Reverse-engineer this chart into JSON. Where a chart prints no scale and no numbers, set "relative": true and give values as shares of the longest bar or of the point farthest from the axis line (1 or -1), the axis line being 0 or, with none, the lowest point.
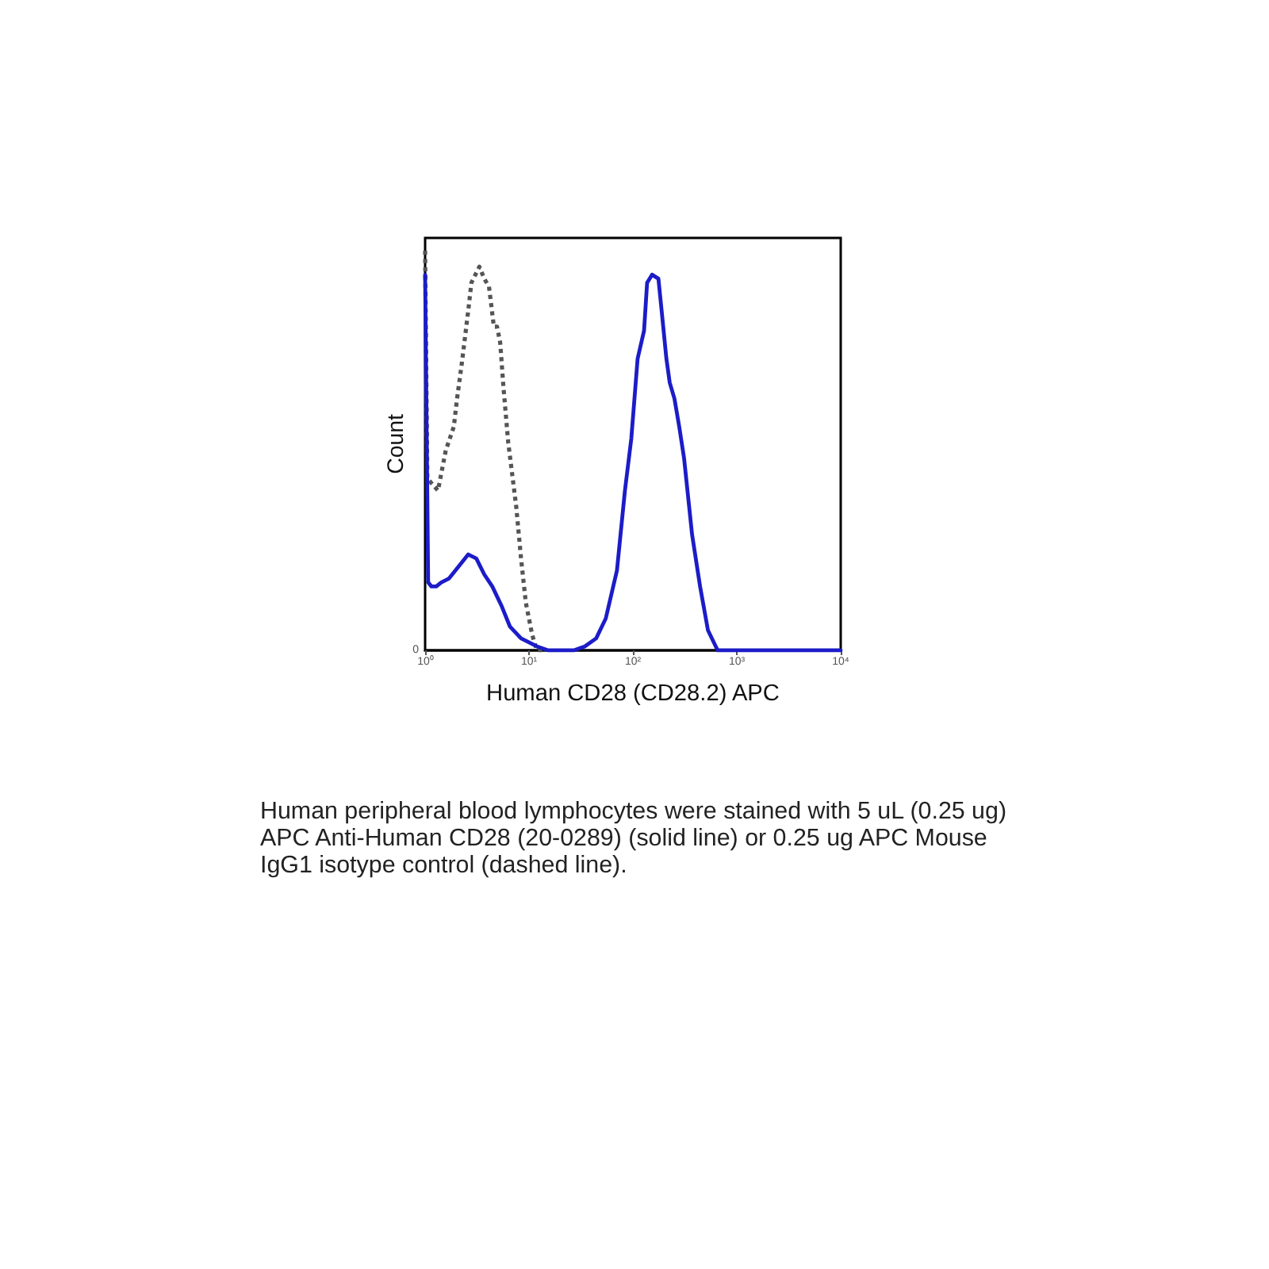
{
  "chart_data": {
    "type": "line",
    "xlabel": "Human CD28 (CD28.2) APC",
    "ylabel": "Count",
    "log": "x",
    "relative": true,
    "xlim": [
      1,
      10000
    ],
    "xticks": [
      {
        "value": 1,
        "label": "10⁰"
      },
      {
        "value": 10,
        "label": "10¹"
      },
      {
        "value": 100,
        "label": "10²"
      },
      {
        "value": 1000,
        "label": "10³"
      },
      {
        "value": 10000,
        "label": "10⁴"
      }
    ],
    "grid": false,
    "marker": "none",
    "series": [
      {
        "color": "#555555",
        "line_style": "dotted",
        "x": [
          1,
          1.05,
          1.33,
          1.58,
          1.89,
          2.03,
          2.26,
          2.6,
          2.79,
          3.33,
          3.71,
          4.12,
          4.59,
          4.92,
          5.28,
          5.67,
          6.31,
          7.53,
          8.38,
          9.31,
          10.7,
          11.9,
          14.3
        ],
        "values": [
          1,
          0.43,
          0.4,
          0.5,
          0.56,
          0.63,
          0.72,
          0.85,
          0.92,
          0.96,
          0.93,
          0.91,
          0.81,
          0.81,
          0.77,
          0.66,
          0.52,
          0.36,
          0.23,
          0.12,
          0.04,
          0,
          0
        ]
      },
      {
        "color": "#1c1cc8",
        "line_style": "solid",
        "x": [
          1,
          1.07,
          1.15,
          1.28,
          1.43,
          1.7,
          2.1,
          2.6,
          3.11,
          3.71,
          4.43,
          5.47,
          6.54,
          8.38,
          11.9,
          15.3,
          27,
          34.5,
          44.3,
          54.8,
          70.2,
          83.8,
          96.5,
          111,
          128,
          137,
          153,
          176,
          189,
          210,
          226,
          251,
          279,
          311,
          371,
          443,
          528,
          654,
          10000
        ],
        "values": [
          0.94,
          0.17,
          0.16,
          0.16,
          0.17,
          0.18,
          0.21,
          0.24,
          0.23,
          0.19,
          0.16,
          0.11,
          0.06,
          0.03,
          0.01,
          0,
          0,
          0.01,
          0.03,
          0.08,
          0.2,
          0.4,
          0.53,
          0.73,
          0.8,
          0.92,
          0.94,
          0.93,
          0.85,
          0.73,
          0.67,
          0.63,
          0.56,
          0.48,
          0.29,
          0.16,
          0.05,
          0,
          0
        ]
      }
    ],
    "annotations": [
      "0",
      "Human peripheral blood lymphocytes were stained with 5 uL (0.25 ug) APC Anti-Human CD28 (20-0289) (solid line) or 0.25 ug APC Mouse IgG1 isotype control (dashed line)."
    ]
  }
}
